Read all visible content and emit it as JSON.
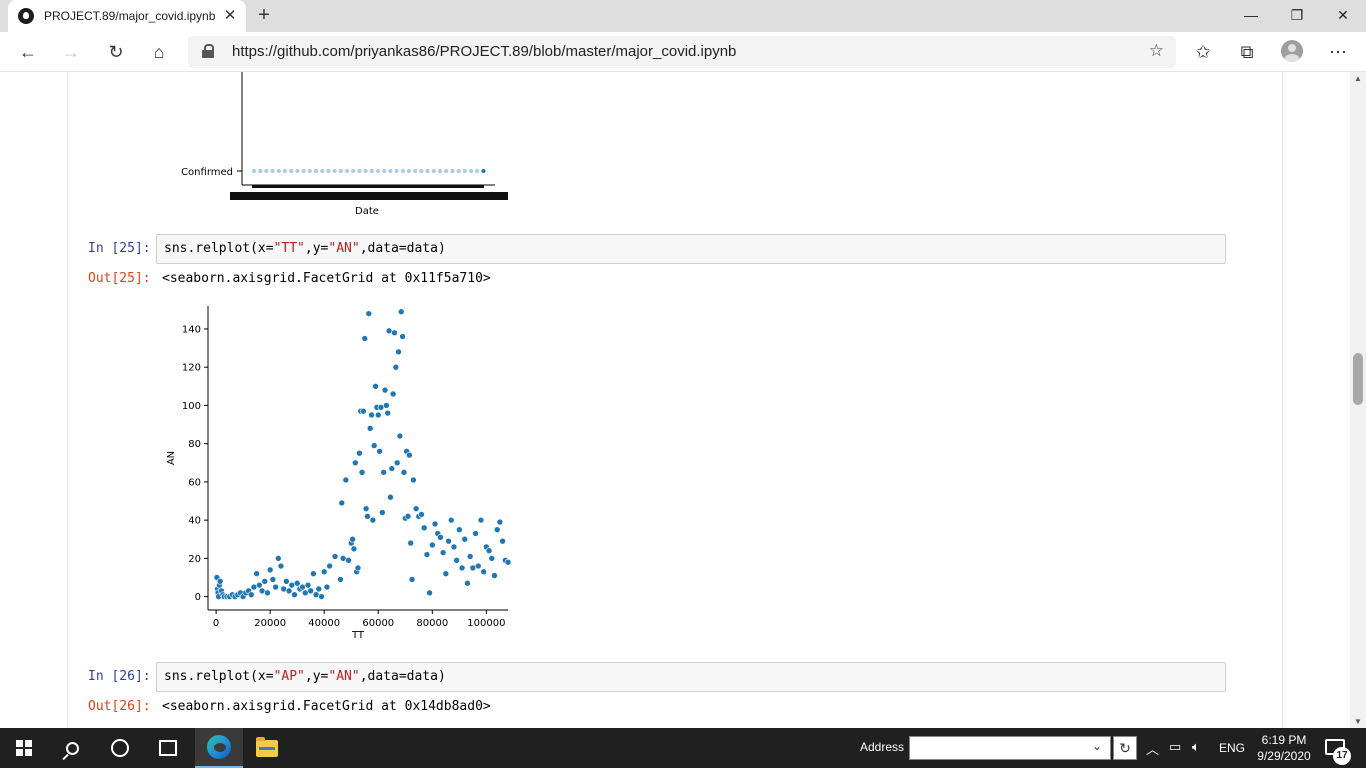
{
  "browser": {
    "tab_title": "PROJECT.89/major_covid.ipynb a",
    "url": "https://github.com/priyankas86/PROJECT.89/blob/master/major_covid.ipynb"
  },
  "cells": {
    "top_plot": {
      "ytick_label": "Confirmed",
      "xlabel": "Date"
    },
    "in25": {
      "prompt": "In [25]:",
      "code_prefix": "sns.relplot(x=",
      "code_x": "\"TT\"",
      "code_mid": ",y=",
      "code_y": "\"AN\"",
      "code_suffix": ",data=data)"
    },
    "out25": {
      "prompt": "Out[25]:",
      "text": "<seaborn.axisgrid.FacetGrid at 0x11f5a710>"
    },
    "in26": {
      "prompt": "In [26]:",
      "code_prefix": "sns.relplot(x=",
      "code_x": "\"AP\"",
      "code_mid": ",y=",
      "code_y": "\"AN\"",
      "code_suffix": ",data=data)"
    },
    "out26": {
      "prompt": "Out[26]:",
      "text": "<seaborn.axisgrid.FacetGrid at 0x14db8ad0>"
    }
  },
  "chart_data": {
    "type": "scatter",
    "xlabel": "TT",
    "ylabel": "AN",
    "xticks": [
      0,
      20000,
      40000,
      60000,
      80000,
      100000
    ],
    "yticks": [
      0,
      20,
      40,
      60,
      80,
      100,
      120,
      140
    ],
    "xlim": [
      -3000,
      108000
    ],
    "ylim": [
      -7,
      152
    ],
    "color": "#1f77b4",
    "points": [
      [
        300,
        10
      ],
      [
        500,
        4
      ],
      [
        700,
        2
      ],
      [
        900,
        0
      ],
      [
        1200,
        6
      ],
      [
        1500,
        8
      ],
      [
        2000,
        3
      ],
      [
        2500,
        1
      ],
      [
        3000,
        0
      ],
      [
        4000,
        0
      ],
      [
        5000,
        0
      ],
      [
        6000,
        1
      ],
      [
        7000,
        0
      ],
      [
        8000,
        1
      ],
      [
        9000,
        2
      ],
      [
        10000,
        0
      ],
      [
        11000,
        2
      ],
      [
        12000,
        3
      ],
      [
        13000,
        1
      ],
      [
        14000,
        5
      ],
      [
        15000,
        12
      ],
      [
        16000,
        6
      ],
      [
        17000,
        3
      ],
      [
        18000,
        8
      ],
      [
        19000,
        2
      ],
      [
        20000,
        14
      ],
      [
        21000,
        9
      ],
      [
        22000,
        5
      ],
      [
        23000,
        20
      ],
      [
        24000,
        16
      ],
      [
        25000,
        4
      ],
      [
        26000,
        8
      ],
      [
        27000,
        3
      ],
      [
        28000,
        6
      ],
      [
        29000,
        1
      ],
      [
        30000,
        7
      ],
      [
        31000,
        4
      ],
      [
        32000,
        5
      ],
      [
        33000,
        2
      ],
      [
        34000,
        6
      ],
      [
        35000,
        3
      ],
      [
        36000,
        12
      ],
      [
        37000,
        1
      ],
      [
        38000,
        4
      ],
      [
        39000,
        0
      ],
      [
        40000,
        13
      ],
      [
        41000,
        5
      ],
      [
        42000,
        16
      ],
      [
        44000,
        21
      ],
      [
        46000,
        9
      ],
      [
        46500,
        49
      ],
      [
        47000,
        20
      ],
      [
        48000,
        61
      ],
      [
        49000,
        19
      ],
      [
        50000,
        28
      ],
      [
        50500,
        30
      ],
      [
        51000,
        25
      ],
      [
        51500,
        70
      ],
      [
        52000,
        13
      ],
      [
        52500,
        15
      ],
      [
        53000,
        75
      ],
      [
        53500,
        97
      ],
      [
        54000,
        65
      ],
      [
        54500,
        97
      ],
      [
        55000,
        135
      ],
      [
        55500,
        46
      ],
      [
        56000,
        42
      ],
      [
        56500,
        148
      ],
      [
        57000,
        88
      ],
      [
        57500,
        95
      ],
      [
        58000,
        40
      ],
      [
        58500,
        79
      ],
      [
        59000,
        110
      ],
      [
        59500,
        99
      ],
      [
        60000,
        95
      ],
      [
        60500,
        76
      ],
      [
        61000,
        99
      ],
      [
        61500,
        44
      ],
      [
        62000,
        65
      ],
      [
        62500,
        108
      ],
      [
        63000,
        100
      ],
      [
        63500,
        96
      ],
      [
        64000,
        139
      ],
      [
        64500,
        52
      ],
      [
        65000,
        67
      ],
      [
        65500,
        106
      ],
      [
        66000,
        138
      ],
      [
        66500,
        120
      ],
      [
        67000,
        70
      ],
      [
        67500,
        128
      ],
      [
        68000,
        84
      ],
      [
        68500,
        149
      ],
      [
        69000,
        136
      ],
      [
        69500,
        65
      ],
      [
        70000,
        41
      ],
      [
        70500,
        76
      ],
      [
        71000,
        42
      ],
      [
        71500,
        74
      ],
      [
        72000,
        28
      ],
      [
        72500,
        9
      ],
      [
        73000,
        61
      ],
      [
        74000,
        46
      ],
      [
        75000,
        42
      ],
      [
        76000,
        43
      ],
      [
        77000,
        36
      ],
      [
        78000,
        22
      ],
      [
        79000,
        2
      ],
      [
        80000,
        27
      ],
      [
        81000,
        38
      ],
      [
        82000,
        33
      ],
      [
        83000,
        31
      ],
      [
        84000,
        23
      ],
      [
        85000,
        12
      ],
      [
        86000,
        29
      ],
      [
        87000,
        40
      ],
      [
        88000,
        26
      ],
      [
        89000,
        19
      ],
      [
        90000,
        35
      ],
      [
        91000,
        15
      ],
      [
        92000,
        30
      ],
      [
        93000,
        7
      ],
      [
        94000,
        21
      ],
      [
        95000,
        15
      ],
      [
        96000,
        33
      ],
      [
        97000,
        16
      ],
      [
        98000,
        40
      ],
      [
        99000,
        13
      ],
      [
        100000,
        26
      ],
      [
        101000,
        24
      ],
      [
        102000,
        20
      ],
      [
        103000,
        11
      ],
      [
        104000,
        35
      ],
      [
        105000,
        39
      ],
      [
        106000,
        29
      ],
      [
        107000,
        19
      ],
      [
        108000,
        18
      ]
    ]
  },
  "taskbar": {
    "address_label": "Address",
    "lang": "ENG",
    "time": "6:19 PM",
    "date": "9/29/2020",
    "notification_count": "17"
  }
}
